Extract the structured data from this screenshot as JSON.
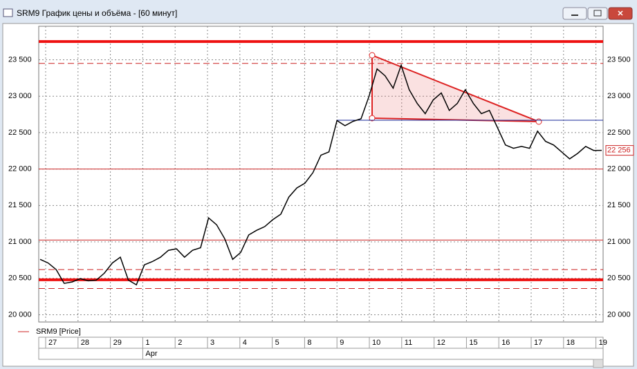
{
  "window_title": "SRM9 График цены и объёма - [60 минут]",
  "chart_data": {
    "type": "line",
    "series": [
      {
        "name": "SRM9 [Price]",
        "color": "#000000",
        "values": [
          20760,
          20710,
          20620,
          20430,
          20450,
          20495,
          20465,
          20475,
          20570,
          20710,
          20790,
          20475,
          20410,
          20685,
          20730,
          20790,
          20885,
          20905,
          20790,
          20885,
          20920,
          21330,
          21235,
          21045,
          20760,
          20855,
          21095,
          21160,
          21210,
          21305,
          21380,
          21615,
          21740,
          21805,
          21950,
          22190,
          22235,
          22665,
          22595,
          22655,
          22690,
          23000,
          23375,
          23280,
          23110,
          23425,
          23090,
          22900,
          22760,
          22950,
          23045,
          22805,
          22900,
          23090,
          22900,
          22760,
          22805,
          22570,
          22330,
          22285,
          22310,
          22285,
          22520,
          22380,
          22330,
          22235,
          22140,
          22215,
          22310,
          22255,
          22256
        ]
      }
    ],
    "x_labels": [
      "27",
      "28",
      "29",
      "1",
      "2",
      "3",
      "4",
      "5",
      "8",
      "9",
      "10",
      "11",
      "12",
      "15",
      "16",
      "17",
      "18",
      "19"
    ],
    "month_label": "Apr",
    "ylim": [
      19900,
      23960
    ],
    "yticks": [
      {
        "value": 20000,
        "label": "20 000"
      },
      {
        "value": 20500,
        "label": "20 500"
      },
      {
        "value": 21000,
        "label": "21 000"
      },
      {
        "value": 21500,
        "label": "21 500"
      },
      {
        "value": 22000,
        "label": "22 000"
      },
      {
        "value": 22500,
        "label": "22 500"
      },
      {
        "value": 23000,
        "label": "23 000"
      },
      {
        "value": 23500,
        "label": "23 500"
      }
    ],
    "grid": true,
    "levels": [
      {
        "value": 23750,
        "style": "thick",
        "color": "#ee1111"
      },
      {
        "value": 20480,
        "style": "thick",
        "color": "#ee1111"
      },
      {
        "value": 23450,
        "style": "dashed",
        "color": "#cc2222"
      },
      {
        "value": 20620,
        "style": "dashed",
        "color": "#cc2222"
      },
      {
        "value": 20360,
        "style": "dashed",
        "color": "#cc2222"
      },
      {
        "value": 22000,
        "style": "thin",
        "color": "#cc2222"
      },
      {
        "value": 21025,
        "style": "thin",
        "color": "#cc2222"
      }
    ],
    "last_price": {
      "value": 22256,
      "label": "22 256"
    }
  }
}
